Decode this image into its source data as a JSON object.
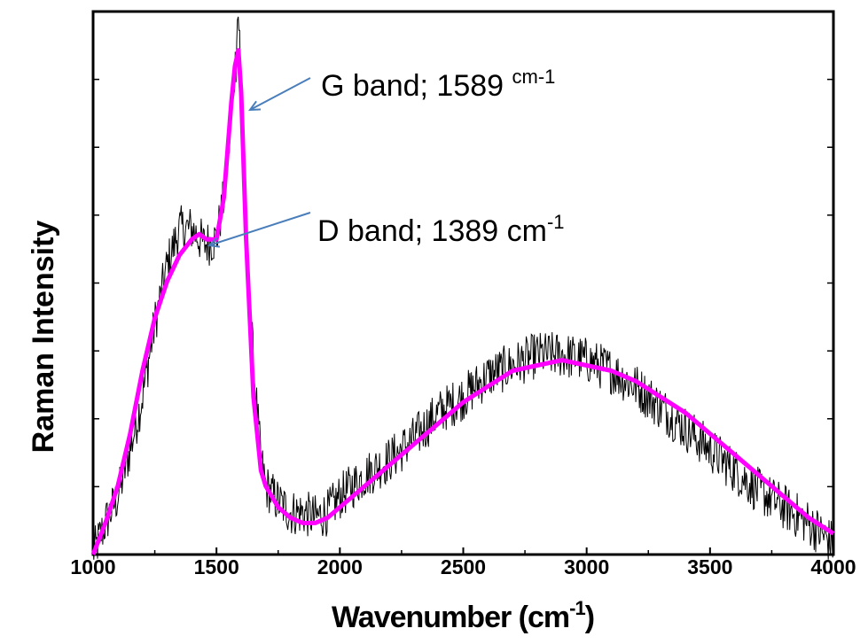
{
  "chart_data": {
    "type": "line",
    "xlabel": "Wavenumber (cm",
    "xlabel_sup": "-1",
    "xlabel_close": ")",
    "ylabel": "Raman Intensity",
    "xlim": [
      1000,
      4000
    ],
    "ylim": [
      0,
      1
    ],
    "x_ticks": [
      "1000",
      "1500",
      "2000",
      "2500",
      "3000",
      "3500",
      "4000"
    ],
    "grid": false,
    "series": [
      {
        "role": "measured spectrum",
        "color": "#000000",
        "x": [
          1000,
          1050,
          1100,
          1150,
          1200,
          1250,
          1300,
          1350,
          1400,
          1450,
          1500,
          1530,
          1560,
          1575,
          1589,
          1600,
          1620,
          1650,
          1680,
          1700,
          1750,
          1800,
          1850,
          1900,
          1950,
          2000,
          2100,
          2200,
          2300,
          2400,
          2500,
          2600,
          2700,
          2800,
          2900,
          3000,
          3100,
          3200,
          3300,
          3400,
          3500,
          3600,
          3700,
          3800,
          3900,
          4000
        ],
        "y": [
          0.0,
          0.06,
          0.11,
          0.2,
          0.3,
          0.44,
          0.55,
          0.62,
          0.62,
          0.59,
          0.6,
          0.68,
          0.82,
          0.93,
          0.97,
          0.86,
          0.62,
          0.36,
          0.18,
          0.13,
          0.1,
          0.08,
          0.08,
          0.07,
          0.08,
          0.11,
          0.15,
          0.18,
          0.22,
          0.27,
          0.3,
          0.34,
          0.36,
          0.38,
          0.38,
          0.37,
          0.35,
          0.32,
          0.28,
          0.24,
          0.2,
          0.16,
          0.12,
          0.09,
          0.06,
          0.02
        ]
      },
      {
        "role": "fit",
        "color": "#ff00ff",
        "x": [
          1000,
          1050,
          1100,
          1150,
          1200,
          1250,
          1300,
          1350,
          1400,
          1430,
          1460,
          1500,
          1530,
          1560,
          1575,
          1589,
          1600,
          1620,
          1650,
          1680,
          1700,
          1750,
          1800,
          1850,
          1900,
          1950,
          2000,
          2100,
          2200,
          2300,
          2400,
          2500,
          2600,
          2700,
          2800,
          2900,
          3000,
          3100,
          3200,
          3300,
          3400,
          3500,
          3600,
          3700,
          3800,
          3900,
          4000
        ],
        "y": [
          0.0,
          0.06,
          0.13,
          0.23,
          0.35,
          0.45,
          0.52,
          0.57,
          0.6,
          0.61,
          0.6,
          0.6,
          0.68,
          0.86,
          0.93,
          0.96,
          0.88,
          0.6,
          0.3,
          0.16,
          0.13,
          0.09,
          0.07,
          0.06,
          0.06,
          0.07,
          0.09,
          0.13,
          0.17,
          0.21,
          0.25,
          0.29,
          0.32,
          0.35,
          0.36,
          0.37,
          0.36,
          0.35,
          0.33,
          0.3,
          0.27,
          0.23,
          0.19,
          0.15,
          0.11,
          0.07,
          0.04
        ]
      }
    ],
    "annotations": [
      {
        "text": "G band;  1589 ",
        "sup": "cm-1",
        "x": 1589,
        "y": 0.96
      },
      {
        "text": "D band;  1389 cm",
        "sup": "-1",
        "x": 1430,
        "y": 0.6
      }
    ],
    "arrow_color": "#4a7ebb"
  }
}
